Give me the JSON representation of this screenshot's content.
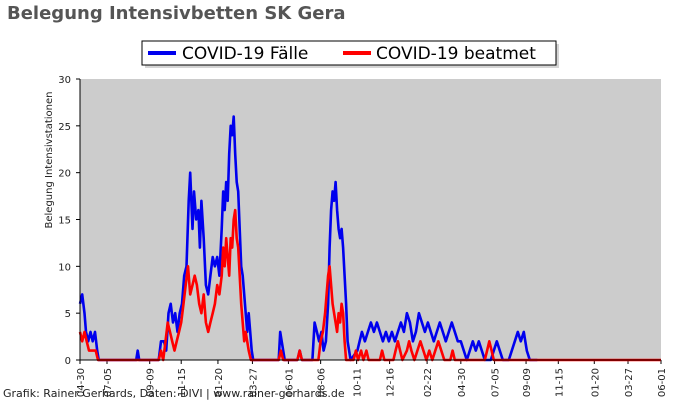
{
  "chart_data": {
    "type": "line",
    "title": "Belegung Intensivbetten SK Gera",
    "ylabel": "Belegung Intensivstationen",
    "xlabel": "",
    "ylim": [
      0,
      30
    ],
    "y_ticks": [
      0,
      5,
      10,
      15,
      20,
      25,
      30
    ],
    "x_range_days": [
      0,
      775
    ],
    "x_tick_labels": [
      {
        "x": 0,
        "label": "04-30"
      },
      {
        "x": 36,
        "label": "07-05"
      },
      {
        "x": 93,
        "label": "09-09"
      },
      {
        "x": 135,
        "label": "11-15"
      },
      {
        "x": 184,
        "label": "01-20"
      },
      {
        "x": 230,
        "label": "03-27"
      },
      {
        "x": 278,
        "label": "06-01"
      },
      {
        "x": 321,
        "label": "08-06"
      },
      {
        "x": 369,
        "label": "10-11"
      },
      {
        "x": 413,
        "label": "12-16"
      },
      {
        "x": 463,
        "label": "02-22"
      },
      {
        "x": 508,
        "label": "04-30"
      },
      {
        "x": 553,
        "label": "07-05"
      },
      {
        "x": 595,
        "label": "09-09"
      },
      {
        "x": 638,
        "label": "11-15"
      },
      {
        "x": 686,
        "label": "01-20"
      },
      {
        "x": 731,
        "label": "03-27"
      },
      {
        "x": 775,
        "label": "06-01"
      }
    ],
    "grid": false,
    "legend_position": "top-center",
    "background_color": "#cccccc",
    "series": [
      {
        "name": "COVID-19 Fälle",
        "color": "#0000ee",
        "points": [
          [
            0,
            6
          ],
          [
            3,
            7
          ],
          [
            6,
            5
          ],
          [
            8,
            3
          ],
          [
            11,
            2
          ],
          [
            14,
            3
          ],
          [
            17,
            2
          ],
          [
            20,
            3
          ],
          [
            23,
            1
          ],
          [
            25,
            0
          ],
          [
            35,
            0
          ],
          [
            40,
            0
          ],
          [
            75,
            0
          ],
          [
            77,
            1
          ],
          [
            79,
            0
          ],
          [
            105,
            0
          ],
          [
            108,
            2
          ],
          [
            112,
            2
          ],
          [
            115,
            1
          ],
          [
            118,
            5
          ],
          [
            121,
            6
          ],
          [
            124,
            4
          ],
          [
            127,
            5
          ],
          [
            130,
            3
          ],
          [
            133,
            5
          ],
          [
            136,
            6
          ],
          [
            139,
            9
          ],
          [
            142,
            10
          ],
          [
            145,
            17
          ],
          [
            147,
            20
          ],
          [
            150,
            14
          ],
          [
            152,
            18
          ],
          [
            155,
            15
          ],
          [
            158,
            16
          ],
          [
            160,
            12
          ],
          [
            162,
            17
          ],
          [
            165,
            13
          ],
          [
            168,
            8
          ],
          [
            171,
            7
          ],
          [
            174,
            9
          ],
          [
            177,
            11
          ],
          [
            180,
            10
          ],
          [
            183,
            11
          ],
          [
            186,
            9
          ],
          [
            189,
            14
          ],
          [
            191,
            18
          ],
          [
            193,
            16
          ],
          [
            195,
            19
          ],
          [
            197,
            17
          ],
          [
            199,
            22
          ],
          [
            201,
            25
          ],
          [
            203,
            24
          ],
          [
            205,
            26
          ],
          [
            207,
            22
          ],
          [
            209,
            19
          ],
          [
            211,
            18
          ],
          [
            213,
            14
          ],
          [
            215,
            10
          ],
          [
            217,
            9
          ],
          [
            219,
            7
          ],
          [
            221,
            5
          ],
          [
            223,
            3
          ],
          [
            225,
            5
          ],
          [
            227,
            3
          ],
          [
            229,
            1
          ],
          [
            231,
            0
          ],
          [
            265,
            0
          ],
          [
            267,
            3
          ],
          [
            269,
            2
          ],
          [
            271,
            1
          ],
          [
            273,
            0
          ],
          [
            290,
            0
          ],
          [
            293,
            1
          ],
          [
            296,
            0
          ],
          [
            310,
            0
          ],
          [
            313,
            4
          ],
          [
            316,
            3
          ],
          [
            319,
            2
          ],
          [
            322,
            3
          ],
          [
            325,
            1
          ],
          [
            328,
            2
          ],
          [
            331,
            6
          ],
          [
            333,
            12
          ],
          [
            335,
            16
          ],
          [
            337,
            18
          ],
          [
            339,
            17
          ],
          [
            341,
            19
          ],
          [
            343,
            16
          ],
          [
            345,
            14
          ],
          [
            347,
            13
          ],
          [
            349,
            14
          ],
          [
            351,
            12
          ],
          [
            353,
            9
          ],
          [
            355,
            6
          ],
          [
            357,
            2
          ],
          [
            359,
            1
          ],
          [
            361,
            0
          ],
          [
            370,
            1
          ],
          [
            373,
            2
          ],
          [
            376,
            3
          ],
          [
            380,
            2
          ],
          [
            384,
            3
          ],
          [
            388,
            4
          ],
          [
            392,
            3
          ],
          [
            396,
            4
          ],
          [
            400,
            3
          ],
          [
            404,
            2
          ],
          [
            408,
            3
          ],
          [
            412,
            2
          ],
          [
            416,
            3
          ],
          [
            420,
            2
          ],
          [
            424,
            3
          ],
          [
            428,
            4
          ],
          [
            432,
            3
          ],
          [
            436,
            5
          ],
          [
            440,
            4
          ],
          [
            444,
            2
          ],
          [
            448,
            3
          ],
          [
            452,
            5
          ],
          [
            456,
            4
          ],
          [
            460,
            3
          ],
          [
            464,
            4
          ],
          [
            468,
            3
          ],
          [
            472,
            2
          ],
          [
            476,
            3
          ],
          [
            480,
            4
          ],
          [
            484,
            3
          ],
          [
            488,
            2
          ],
          [
            492,
            3
          ],
          [
            496,
            4
          ],
          [
            500,
            3
          ],
          [
            504,
            2
          ],
          [
            508,
            2
          ],
          [
            512,
            1
          ],
          [
            516,
            0
          ],
          [
            520,
            1
          ],
          [
            524,
            2
          ],
          [
            528,
            1
          ],
          [
            532,
            2
          ],
          [
            536,
            1
          ],
          [
            540,
            0
          ],
          [
            548,
            0
          ],
          [
            552,
            1
          ],
          [
            556,
            2
          ],
          [
            560,
            1
          ],
          [
            564,
            0
          ],
          [
            572,
            0
          ],
          [
            576,
            1
          ],
          [
            580,
            2
          ],
          [
            584,
            3
          ],
          [
            588,
            2
          ],
          [
            592,
            3
          ],
          [
            596,
            1
          ],
          [
            600,
            0
          ],
          [
            610,
            0
          ]
        ]
      },
      {
        "name": "COVID-19 beatmet",
        "color": "#ff0000",
        "points": [
          [
            0,
            3
          ],
          [
            3,
            2
          ],
          [
            6,
            3
          ],
          [
            9,
            2
          ],
          [
            12,
            1
          ],
          [
            15,
            1
          ],
          [
            18,
            1
          ],
          [
            21,
            1
          ],
          [
            24,
            0
          ],
          [
            105,
            0
          ],
          [
            108,
            1
          ],
          [
            111,
            0
          ],
          [
            114,
            2
          ],
          [
            117,
            4
          ],
          [
            120,
            3
          ],
          [
            123,
            2
          ],
          [
            126,
            1
          ],
          [
            129,
            2
          ],
          [
            132,
            3
          ],
          [
            135,
            4
          ],
          [
            138,
            6
          ],
          [
            141,
            8
          ],
          [
            144,
            10
          ],
          [
            147,
            7
          ],
          [
            150,
            8
          ],
          [
            153,
            9
          ],
          [
            156,
            8
          ],
          [
            159,
            6
          ],
          [
            162,
            5
          ],
          [
            165,
            7
          ],
          [
            168,
            4
          ],
          [
            171,
            3
          ],
          [
            174,
            4
          ],
          [
            177,
            5
          ],
          [
            180,
            6
          ],
          [
            183,
            8
          ],
          [
            186,
            7
          ],
          [
            189,
            9
          ],
          [
            191,
            12
          ],
          [
            193,
            10
          ],
          [
            195,
            13
          ],
          [
            197,
            11
          ],
          [
            199,
            9
          ],
          [
            201,
            13
          ],
          [
            203,
            12
          ],
          [
            205,
            15
          ],
          [
            207,
            16
          ],
          [
            209,
            13
          ],
          [
            211,
            12
          ],
          [
            213,
            9
          ],
          [
            215,
            6
          ],
          [
            217,
            4
          ],
          [
            219,
            2
          ],
          [
            221,
            3
          ],
          [
            223,
            2
          ],
          [
            225,
            1
          ],
          [
            228,
            0
          ],
          [
            265,
            0
          ],
          [
            268,
            1
          ],
          [
            271,
            0
          ],
          [
            290,
            0
          ],
          [
            293,
            1
          ],
          [
            296,
            0
          ],
          [
            318,
            0
          ],
          [
            321,
            2
          ],
          [
            324,
            3
          ],
          [
            327,
            5
          ],
          [
            329,
            7
          ],
          [
            331,
            9
          ],
          [
            333,
            10
          ],
          [
            335,
            8
          ],
          [
            337,
            6
          ],
          [
            339,
            5
          ],
          [
            341,
            4
          ],
          [
            343,
            3
          ],
          [
            345,
            5
          ],
          [
            347,
            4
          ],
          [
            349,
            6
          ],
          [
            351,
            5
          ],
          [
            353,
            2
          ],
          [
            355,
            0
          ],
          [
            365,
            0
          ],
          [
            368,
            1
          ],
          [
            371,
            0
          ],
          [
            375,
            1
          ],
          [
            378,
            0
          ],
          [
            382,
            1
          ],
          [
            385,
            0
          ],
          [
            400,
            0
          ],
          [
            403,
            1
          ],
          [
            406,
            0
          ],
          [
            418,
            0
          ],
          [
            421,
            1
          ],
          [
            424,
            2
          ],
          [
            427,
            1
          ],
          [
            430,
            0
          ],
          [
            436,
            1
          ],
          [
            439,
            2
          ],
          [
            442,
            1
          ],
          [
            446,
            0
          ],
          [
            450,
            1
          ],
          [
            454,
            2
          ],
          [
            458,
            1
          ],
          [
            462,
            0
          ],
          [
            466,
            1
          ],
          [
            470,
            0
          ],
          [
            474,
            1
          ],
          [
            478,
            2
          ],
          [
            482,
            1
          ],
          [
            486,
            0
          ],
          [
            494,
            0
          ],
          [
            497,
            1
          ],
          [
            500,
            0
          ],
          [
            540,
            0
          ],
          [
            543,
            1
          ],
          [
            546,
            2
          ],
          [
            549,
            1
          ],
          [
            552,
            0
          ],
          [
            775,
            0
          ]
        ]
      }
    ]
  },
  "footer": {
    "credit": "Grafik: Rainer Gerhards, Daten: DIVI | www.rainer-gerhards.de"
  }
}
